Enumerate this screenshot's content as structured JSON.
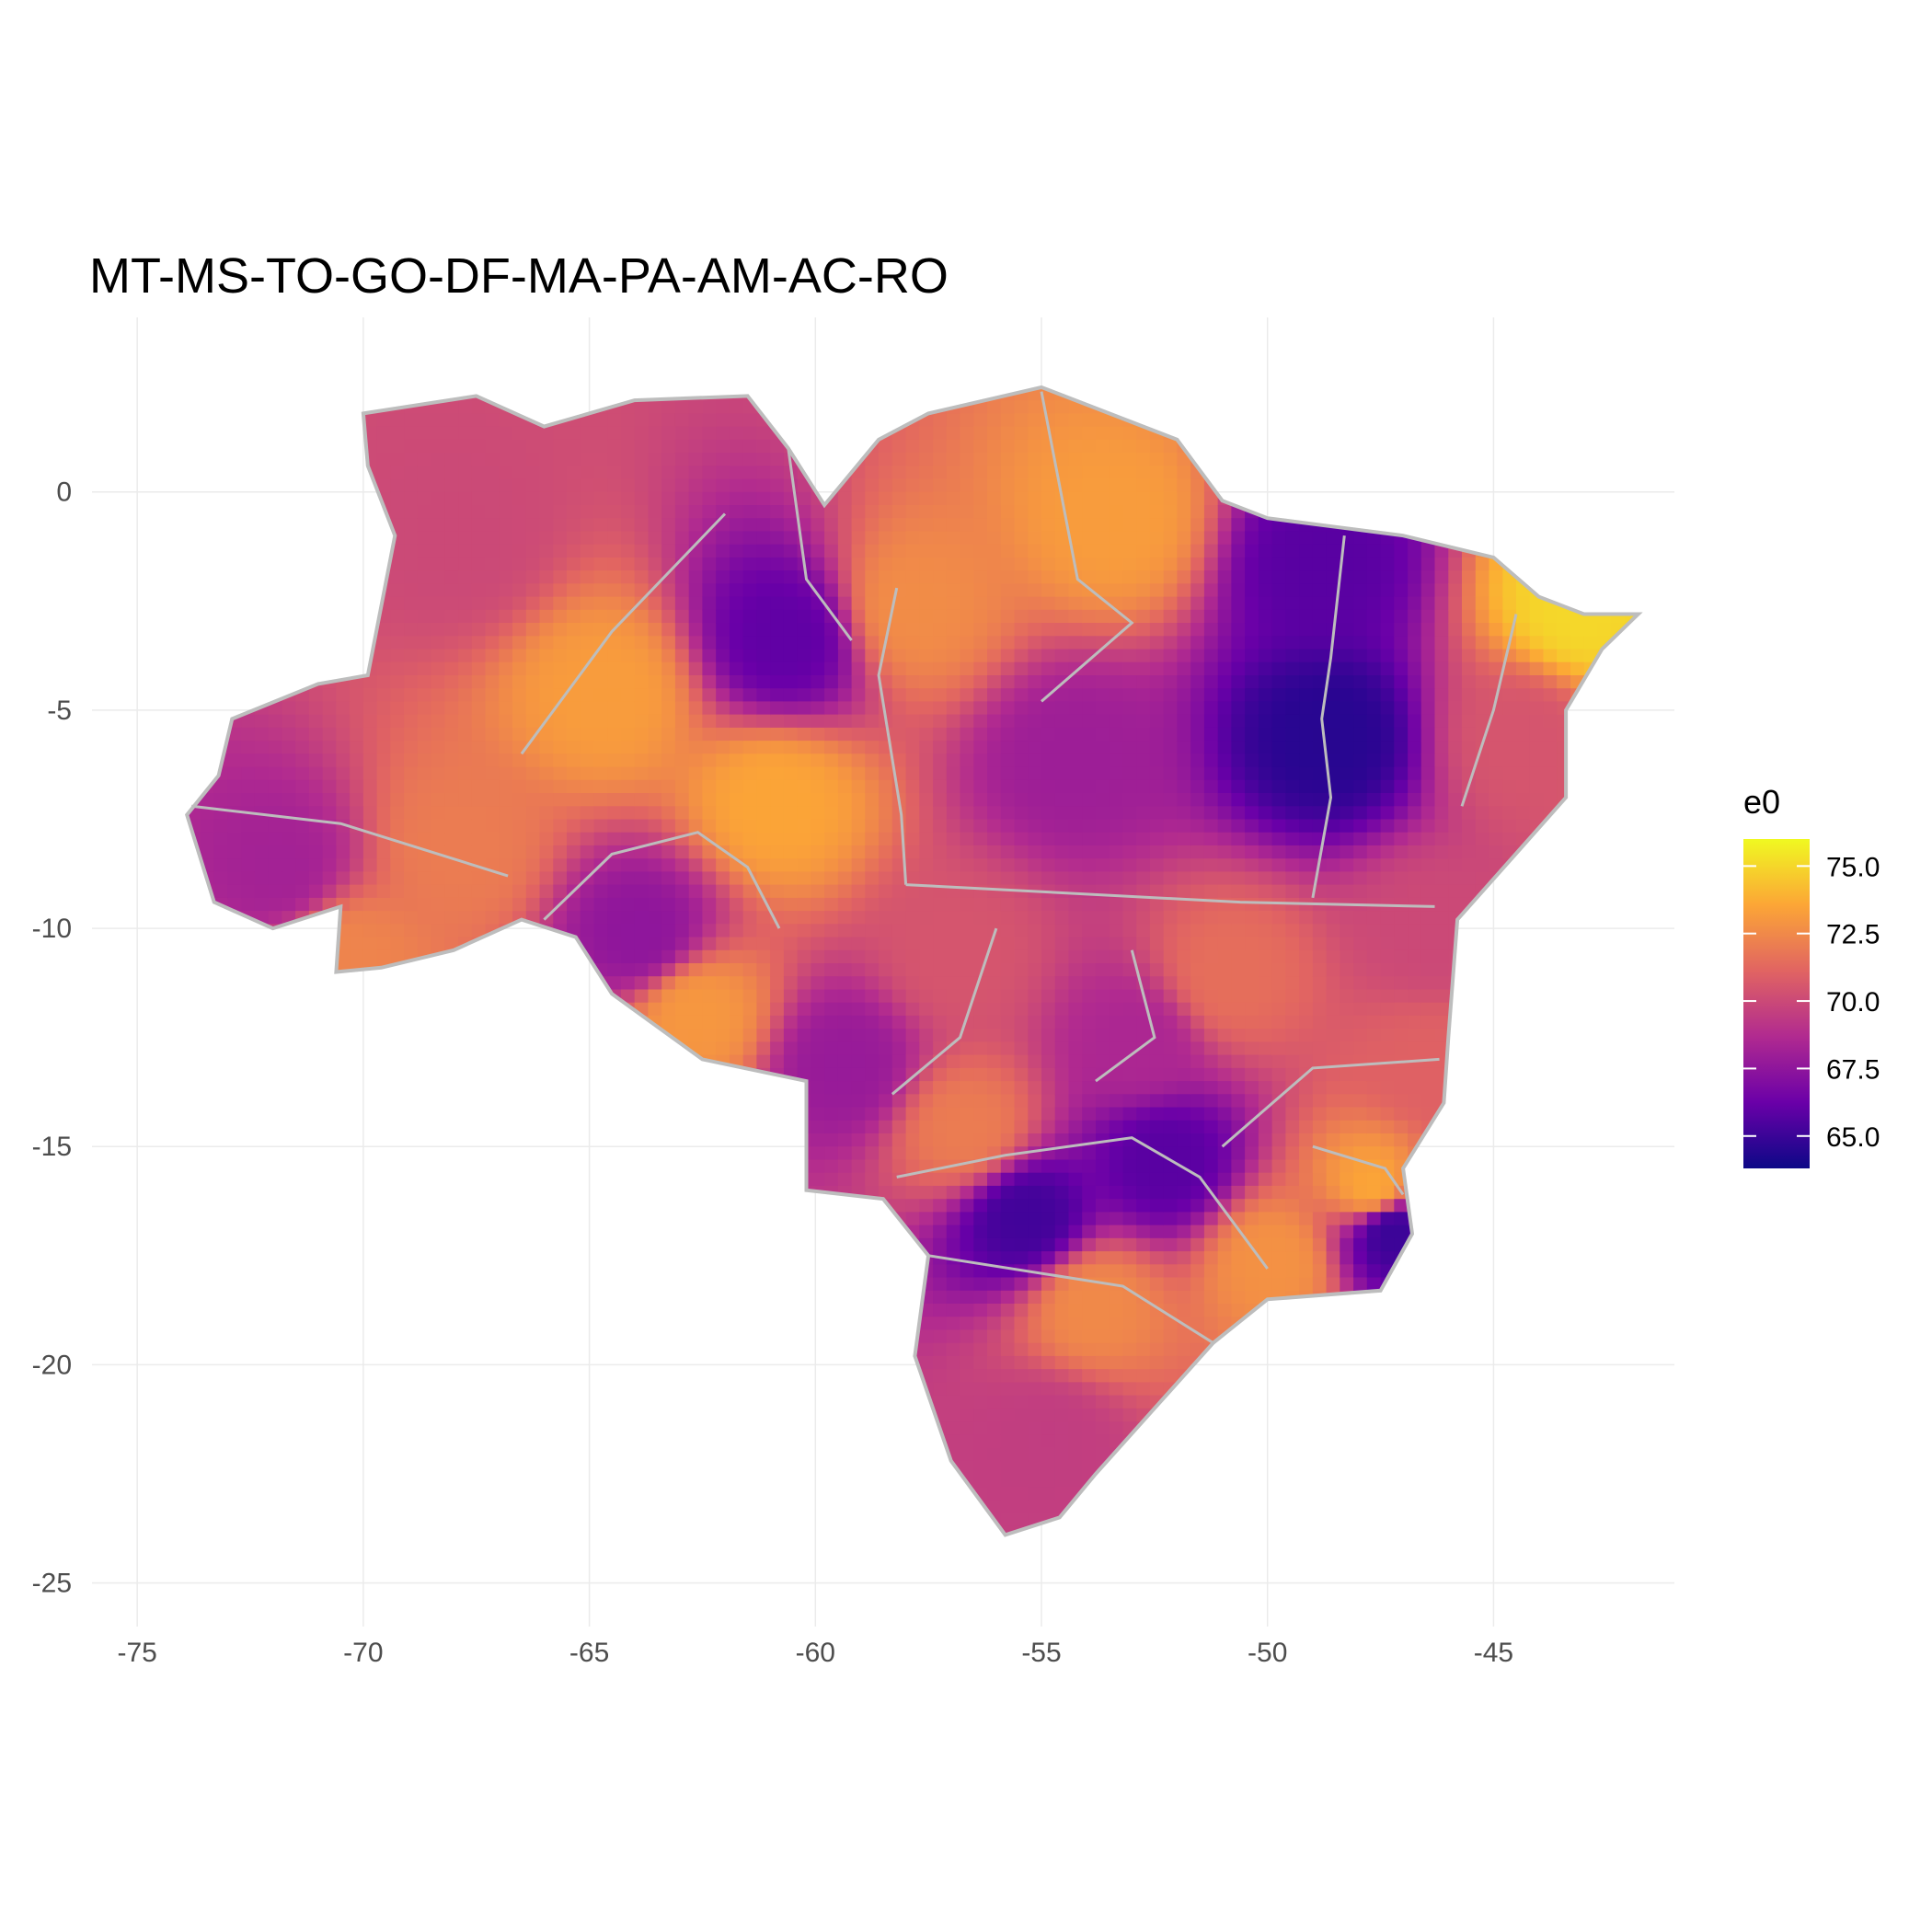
{
  "chart_data": {
    "type": "heatmap",
    "title": "MT-MS-TO-GO-DF-MA-PA-AM-AC-RO",
    "xlabel": "",
    "ylabel": "",
    "xlim": [
      -76,
      -41
    ],
    "ylim": [
      -26,
      4
    ],
    "x_ticks": [
      -75,
      -70,
      -65,
      -60,
      -55,
      -50,
      -45
    ],
    "x_tick_labels": [
      "-75",
      "-70",
      "-65",
      "-60",
      "-55",
      "-50",
      "-45"
    ],
    "y_ticks": [
      0,
      -5,
      -10,
      -15,
      -20,
      -25
    ],
    "y_tick_labels": [
      "0",
      "-5",
      "-10",
      "-15",
      "-20",
      "-25"
    ],
    "grid": true,
    "legend": {
      "title": "e0",
      "placement": "right",
      "range": [
        63.8,
        76.0
      ],
      "breaks": [
        75.0,
        72.5,
        70.0,
        67.5,
        65.0
      ],
      "break_labels": [
        "75.0",
        "72.5",
        "70.0",
        "67.5",
        "65.0"
      ],
      "palette": [
        "#0d0887",
        "#6a00a8",
        "#b12a90",
        "#e16462",
        "#fca636",
        "#f0f921"
      ]
    },
    "border_color": "#bdbdbd",
    "outline": [
      [
        -70,
        1.8
      ],
      [
        -67.5,
        2.2
      ],
      [
        -66,
        1.5
      ],
      [
        -64,
        2.1
      ],
      [
        -61.5,
        2.2
      ],
      [
        -60.6,
        1.0
      ],
      [
        -59.8,
        -0.3
      ],
      [
        -58.6,
        1.2
      ],
      [
        -57.5,
        1.8
      ],
      [
        -55,
        2.4
      ],
      [
        -52,
        1.2
      ],
      [
        -51,
        -0.2
      ],
      [
        -50,
        -0.6
      ],
      [
        -48.5,
        -0.8
      ],
      [
        -47,
        -1.0
      ],
      [
        -45,
        -1.5
      ],
      [
        -44,
        -2.4
      ],
      [
        -43,
        -2.8
      ],
      [
        -41.8,
        -2.8
      ],
      [
        -42.6,
        -3.6
      ],
      [
        -43.4,
        -5.0
      ],
      [
        -43.4,
        -7.0
      ],
      [
        -45.8,
        -9.8
      ],
      [
        -46,
        -12.5
      ],
      [
        -46.1,
        -14.0
      ],
      [
        -47.0,
        -15.5
      ],
      [
        -46.8,
        -17.0
      ],
      [
        -47.5,
        -18.3
      ],
      [
        -50.0,
        -18.5
      ],
      [
        -51.2,
        -19.5
      ],
      [
        -52.5,
        -21.0
      ],
      [
        -53.8,
        -22.5
      ],
      [
        -54.6,
        -23.5
      ],
      [
        -55.8,
        -23.9
      ],
      [
        -57.0,
        -22.2
      ],
      [
        -57.8,
        -19.8
      ],
      [
        -57.5,
        -17.5
      ],
      [
        -58.5,
        -16.2
      ],
      [
        -60.2,
        -16.0
      ],
      [
        -60.2,
        -13.5
      ],
      [
        -62.5,
        -13.0
      ],
      [
        -64.5,
        -11.5
      ],
      [
        -65.3,
        -10.2
      ],
      [
        -66.5,
        -9.8
      ],
      [
        -68.0,
        -10.5
      ],
      [
        -69.6,
        -10.9
      ],
      [
        -70.6,
        -11.0
      ],
      [
        -70.5,
        -9.5
      ],
      [
        -72.0,
        -10.0
      ],
      [
        -73.3,
        -9.4
      ],
      [
        -73.9,
        -7.4
      ],
      [
        -73.2,
        -6.5
      ],
      [
        -72.9,
        -5.2
      ],
      [
        -71.0,
        -4.4
      ],
      [
        -69.9,
        -4.2
      ],
      [
        -69.3,
        -1.0
      ],
      [
        -69.9,
        0.6
      ],
      [
        -70,
        1.8
      ]
    ],
    "data": [
      {
        "x": -68.0,
        "y": -1.0,
        "value": 70.0
      },
      {
        "x": -64.8,
        "y": -4.5,
        "value": 73.2
      },
      {
        "x": -61.0,
        "y": -7.0,
        "value": 73.5
      },
      {
        "x": -60.8,
        "y": -3.2,
        "value": 66.0
      },
      {
        "x": -58.0,
        "y": -2.5,
        "value": 72.6
      },
      {
        "x": -53.5,
        "y": -0.5,
        "value": 73.2
      },
      {
        "x": -54.5,
        "y": -6.0,
        "value": 68.0
      },
      {
        "x": -48.8,
        "y": -5.5,
        "value": 64.5
      },
      {
        "x": -49.0,
        "y": -1.5,
        "value": 65.8
      },
      {
        "x": -43.2,
        "y": -2.5,
        "value": 75.0
      },
      {
        "x": -44.5,
        "y": -5.5,
        "value": 70.5
      },
      {
        "x": -72.0,
        "y": -8.5,
        "value": 68.2
      },
      {
        "x": -70.5,
        "y": -10.5,
        "value": 72.3
      },
      {
        "x": -68.0,
        "y": -8.0,
        "value": 72.0
      },
      {
        "x": -64.0,
        "y": -10.0,
        "value": 67.5
      },
      {
        "x": -62.8,
        "y": -11.8,
        "value": 73.0
      },
      {
        "x": -59.5,
        "y": -13.0,
        "value": 67.8
      },
      {
        "x": -55.5,
        "y": -16.5,
        "value": 65.2
      },
      {
        "x": -52.4,
        "y": -15.2,
        "value": 65.8
      },
      {
        "x": -54.0,
        "y": -18.5,
        "value": 72.5
      },
      {
        "x": -55.0,
        "y": -21.5,
        "value": 69.5
      },
      {
        "x": -47.8,
        "y": -15.8,
        "value": 73.5
      },
      {
        "x": -47.4,
        "y": -16.8,
        "value": 65.0
      },
      {
        "x": -50.0,
        "y": -17.5,
        "value": 72.8
      },
      {
        "x": -51.0,
        "y": -11.0,
        "value": 71.5
      },
      {
        "x": -46.5,
        "y": -10.0,
        "value": 70.0
      },
      {
        "x": -46.5,
        "y": -13.0,
        "value": 71.0
      },
      {
        "x": -57.0,
        "y": -10.5,
        "value": 70.5
      },
      {
        "x": -53.0,
        "y": -12.5,
        "value": 68.5
      },
      {
        "x": -56.8,
        "y": -14.5,
        "value": 72.0
      }
    ]
  }
}
